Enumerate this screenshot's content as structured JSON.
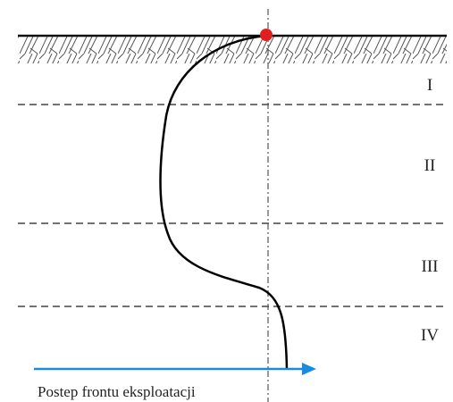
{
  "zones": [
    {
      "label": "I"
    },
    {
      "label": "II"
    },
    {
      "label": "III"
    },
    {
      "label": "IV"
    }
  ],
  "arrow": {
    "label": "Postep frontu eksploatacji"
  }
}
